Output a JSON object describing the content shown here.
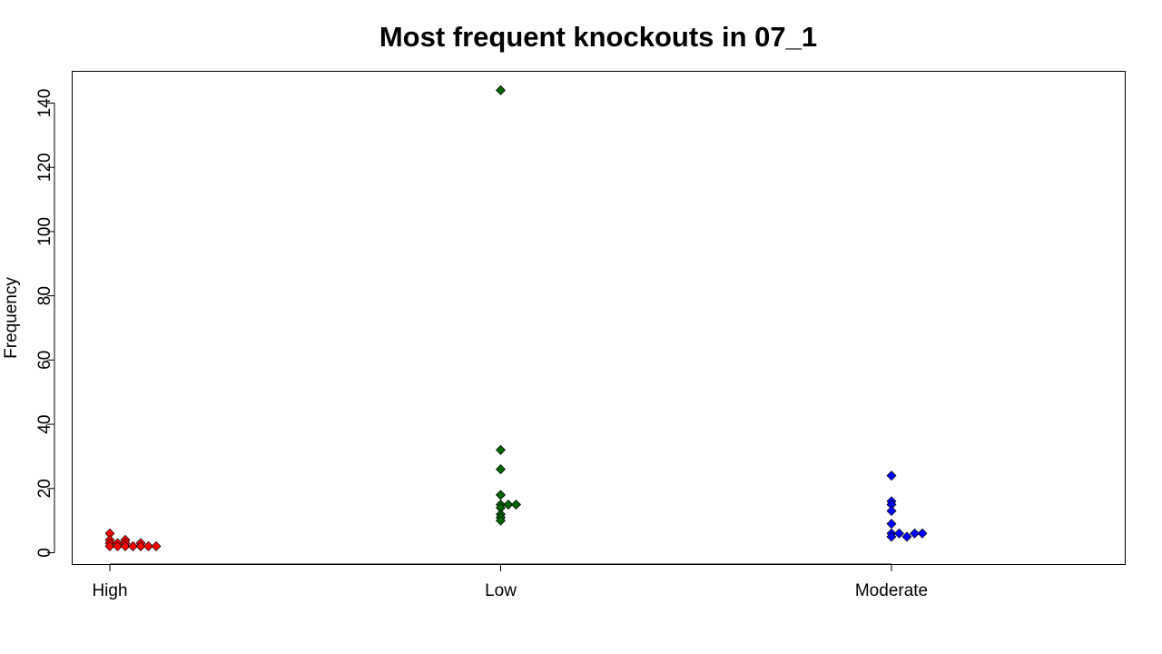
{
  "chart_data": {
    "type": "scatter",
    "title": "Most frequent knockouts in 07_1",
    "xlabel": "",
    "ylabel": "Frequency",
    "categories": [
      "High",
      "Low",
      "Moderate"
    ],
    "yticks": [
      0,
      20,
      40,
      60,
      80,
      100,
      120,
      140
    ],
    "ylim": [
      -3.5,
      150
    ],
    "grid": false,
    "legend": "none",
    "marker": "diamond",
    "series": [
      {
        "category": "High",
        "color": "#ff0000",
        "points": [
          {
            "rank": 0,
            "value": 6
          },
          {
            "rank": 0,
            "value": 4
          },
          {
            "rank": 0,
            "value": 3
          },
          {
            "rank": 0,
            "value": 2
          },
          {
            "rank": 1,
            "value": 3
          },
          {
            "rank": 1,
            "value": 2
          },
          {
            "rank": 2,
            "value": 4
          },
          {
            "rank": 2,
            "value": 3
          },
          {
            "rank": 2,
            "value": 2
          },
          {
            "rank": 3,
            "value": 2
          },
          {
            "rank": 4,
            "value": 3
          },
          {
            "rank": 4,
            "value": 2
          },
          {
            "rank": 5,
            "value": 2
          },
          {
            "rank": 6,
            "value": 2
          }
        ]
      },
      {
        "category": "Low",
        "color": "#006400",
        "points": [
          {
            "rank": 0,
            "value": 144
          },
          {
            "rank": 0,
            "value": 32
          },
          {
            "rank": 0,
            "value": 26
          },
          {
            "rank": 0,
            "value": 18
          },
          {
            "rank": 0,
            "value": 15
          },
          {
            "rank": 0,
            "value": 14
          },
          {
            "rank": 0,
            "value": 12
          },
          {
            "rank": 0,
            "value": 11
          },
          {
            "rank": 0,
            "value": 10
          },
          {
            "rank": 1,
            "value": 15
          },
          {
            "rank": 2,
            "value": 15
          }
        ]
      },
      {
        "category": "Moderate",
        "color": "#0000ff",
        "points": [
          {
            "rank": 0,
            "value": 24
          },
          {
            "rank": 0,
            "value": 16
          },
          {
            "rank": 0,
            "value": 15
          },
          {
            "rank": 0,
            "value": 13
          },
          {
            "rank": 0,
            "value": 9
          },
          {
            "rank": 0,
            "value": 6
          },
          {
            "rank": 0,
            "value": 5
          },
          {
            "rank": 1,
            "value": 6
          },
          {
            "rank": 2,
            "value": 5
          },
          {
            "rank": 3,
            "value": 6
          },
          {
            "rank": 4,
            "value": 6
          }
        ]
      }
    ]
  }
}
